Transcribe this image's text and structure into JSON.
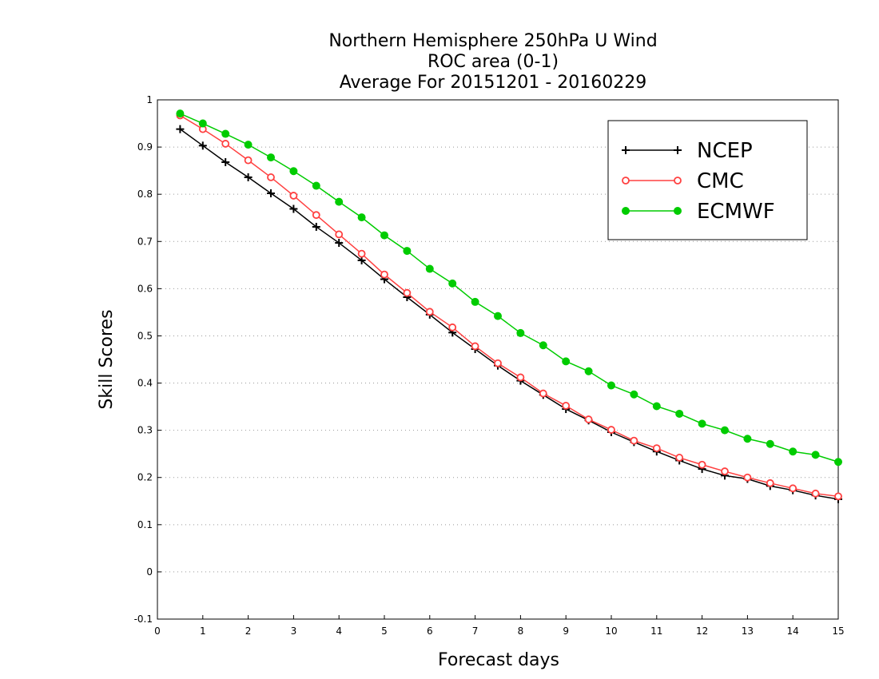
{
  "chart_data": {
    "type": "line",
    "title": [
      "Northern Hemisphere 250hPa U Wind",
      "ROC area (0-1)",
      "Average For 20151201 - 20160229"
    ],
    "xlabel": "Forecast days",
    "ylabel": "Skill Scores",
    "xlim": [
      0,
      15
    ],
    "ylim": [
      -0.1,
      1
    ],
    "x_ticks": [
      "0",
      "1",
      "2",
      "3",
      "4",
      "5",
      "6",
      "7",
      "8",
      "9",
      "10",
      "11",
      "12",
      "13",
      "14",
      "15"
    ],
    "y_ticks": [
      "-0.1",
      "0",
      "0.1",
      "0.2",
      "0.3",
      "0.4",
      "0.5",
      "0.6",
      "0.7",
      "0.8",
      "0.9",
      "1"
    ],
    "grid": true,
    "legend_position": "top-right",
    "x": [
      0.5,
      1,
      1.5,
      2,
      2.5,
      3,
      3.5,
      4,
      4.5,
      5,
      5.5,
      6,
      6.5,
      7,
      7.5,
      8,
      8.5,
      9,
      9.5,
      10,
      10.5,
      11,
      11.5,
      12,
      12.5,
      13,
      13.5,
      14,
      14.5,
      15
    ],
    "series": [
      {
        "name": "NCEP",
        "color": "#000000",
        "marker": "plus",
        "values": [
          0.938,
          0.903,
          0.868,
          0.836,
          0.802,
          0.769,
          0.731,
          0.697,
          0.66,
          0.62,
          0.582,
          0.545,
          0.507,
          0.472,
          0.437,
          0.405,
          0.375,
          0.345,
          0.321,
          0.296,
          0.275,
          0.255,
          0.236,
          0.218,
          0.204,
          0.197,
          0.182,
          0.173,
          0.162,
          0.154
        ]
      },
      {
        "name": "CMC",
        "color": "#ff4040",
        "marker": "open-circle",
        "values": [
          0.967,
          0.938,
          0.907,
          0.872,
          0.836,
          0.797,
          0.756,
          0.715,
          0.674,
          0.63,
          0.591,
          0.551,
          0.518,
          0.478,
          0.442,
          0.412,
          0.378,
          0.352,
          0.323,
          0.301,
          0.278,
          0.262,
          0.242,
          0.227,
          0.213,
          0.2,
          0.188,
          0.177,
          0.166,
          0.16
        ]
      },
      {
        "name": "ECMWF",
        "color": "#00cc00",
        "marker": "filled-circle",
        "values": [
          0.971,
          0.95,
          0.928,
          0.905,
          0.878,
          0.849,
          0.818,
          0.784,
          0.751,
          0.713,
          0.68,
          0.642,
          0.611,
          0.572,
          0.542,
          0.506,
          0.48,
          0.446,
          0.425,
          0.395,
          0.376,
          0.351,
          0.335,
          0.314,
          0.3,
          0.282,
          0.271,
          0.255,
          0.248,
          0.233
        ]
      }
    ]
  }
}
